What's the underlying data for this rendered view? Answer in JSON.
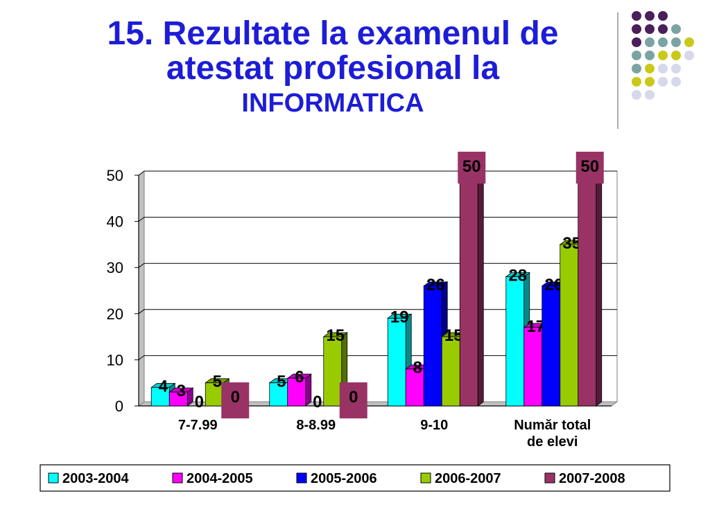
{
  "title": {
    "line1": "15. Rezultate la examenul de",
    "line2": "atestat profesional la",
    "line3": "INFORMATICA"
  },
  "decor": {
    "dot_colors": {
      "purple": "#4b1f5c",
      "teal": "#7ba3a3",
      "yellow": "#c9c91a",
      "lavender": "#d8d8ec"
    },
    "dot_rows": [
      [
        "purple",
        "purple",
        "purple"
      ],
      [
        "purple",
        "purple",
        "purple",
        "teal"
      ],
      [
        "purple",
        "teal",
        "teal",
        "teal",
        "yellow"
      ],
      [
        "teal",
        "teal",
        "yellow",
        "yellow",
        "lavender"
      ],
      [
        "teal",
        "yellow",
        "lavender",
        "lavender"
      ],
      [
        "yellow",
        "yellow",
        "lavender",
        "lavender"
      ],
      [
        "lavender",
        "lavender"
      ]
    ]
  },
  "chart_data": {
    "type": "bar",
    "categories": [
      "7-7.99",
      "8-8.99",
      "9-10",
      "Număr total de elevi"
    ],
    "series": [
      {
        "name": "2003-2004",
        "color": "#00ffff",
        "values": [
          4,
          5,
          19,
          28
        ]
      },
      {
        "name": "2004-2005",
        "color": "#ff00ff",
        "values": [
          3,
          6,
          8,
          17
        ]
      },
      {
        "name": "2005-2006",
        "color": "#0000ff",
        "values": [
          0,
          0,
          26,
          26
        ]
      },
      {
        "name": "2006-2007",
        "color": "#99cc00",
        "values": [
          5,
          15,
          15,
          35
        ]
      },
      {
        "name": "2007-2008",
        "color": "#993366",
        "values": [
          0,
          0,
          50,
          50
        ]
      }
    ],
    "yticks": [
      "0",
      "10",
      "20",
      "30",
      "40",
      "50"
    ],
    "ylim": [
      0,
      50
    ],
    "grid": true,
    "legend": "bottom"
  }
}
